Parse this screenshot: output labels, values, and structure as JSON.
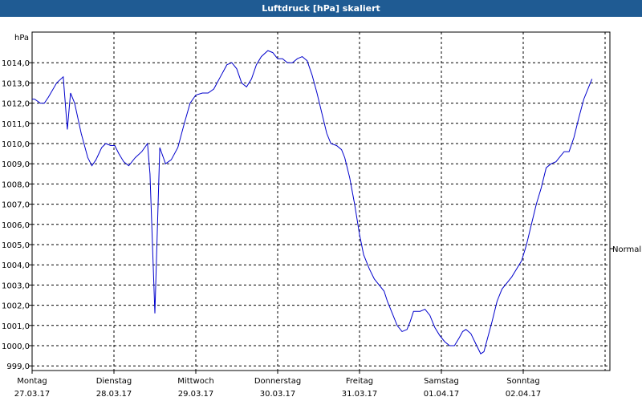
{
  "window": {
    "title": "Luftdruck [hPa] skaliert"
  },
  "chart_data": {
    "type": "line",
    "title": "Luftdruck [hPa] skaliert",
    "y_unit": "hPa",
    "ylim": [
      999.0,
      1014.5
    ],
    "y_ticks": [
      "999,0",
      "1000,0",
      "1001,0",
      "1002,0",
      "1003,0",
      "1004,0",
      "1005,0",
      "1006,0",
      "1007,0",
      "1008,0",
      "1009,0",
      "1010,0",
      "1011,0",
      "1012,0",
      "1013,0",
      "1014,0"
    ],
    "x_ticks": [
      {
        "day": "Montag",
        "date": "27.03.17"
      },
      {
        "day": "Dienstag",
        "date": "28.03.17"
      },
      {
        "day": "Mittwoch",
        "date": "29.03.17"
      },
      {
        "day": "Donnerstag",
        "date": "30.03.17"
      },
      {
        "day": "Freitag",
        "date": "31.03.17"
      },
      {
        "day": "Samstag",
        "date": "01.04.17"
      },
      {
        "day": "Sonntag",
        "date": "02.04.17"
      }
    ],
    "xlim_days": [
      0,
      7.18
    ],
    "reference_label": "Normal",
    "reference_value": 1004.8,
    "grid": true,
    "line_color": "#0000cc",
    "series": [
      {
        "points": [
          [
            0.0,
            1012.2
          ],
          [
            0.03,
            1012.2
          ],
          [
            0.1,
            1012.0
          ],
          [
            0.15,
            1012.0
          ],
          [
            0.2,
            1012.3
          ],
          [
            0.3,
            1013.0
          ],
          [
            0.38,
            1013.3
          ],
          [
            0.43,
            1010.7
          ],
          [
            0.47,
            1012.5
          ],
          [
            0.52,
            1012.0
          ],
          [
            0.6,
            1010.5
          ],
          [
            0.68,
            1009.3
          ],
          [
            0.73,
            1008.9
          ],
          [
            0.78,
            1009.2
          ],
          [
            0.85,
            1009.8
          ],
          [
            0.9,
            1010.0
          ],
          [
            0.96,
            1009.9
          ],
          [
            1.01,
            1009.9
          ],
          [
            1.06,
            1009.5
          ],
          [
            1.12,
            1009.1
          ],
          [
            1.18,
            1008.9
          ],
          [
            1.26,
            1009.3
          ],
          [
            1.34,
            1009.6
          ],
          [
            1.41,
            1010.0
          ],
          [
            1.44,
            1008.5
          ],
          [
            1.5,
            1001.6
          ],
          [
            1.56,
            1009.8
          ],
          [
            1.63,
            1009.0
          ],
          [
            1.7,
            1009.2
          ],
          [
            1.78,
            1009.8
          ],
          [
            1.86,
            1011.0
          ],
          [
            1.93,
            1012.0
          ],
          [
            2.0,
            1012.4
          ],
          [
            2.08,
            1012.5
          ],
          [
            2.15,
            1012.5
          ],
          [
            2.22,
            1012.7
          ],
          [
            2.3,
            1013.3
          ],
          [
            2.38,
            1013.9
          ],
          [
            2.44,
            1014.0
          ],
          [
            2.5,
            1013.7
          ],
          [
            2.56,
            1013.0
          ],
          [
            2.62,
            1012.8
          ],
          [
            2.68,
            1013.2
          ],
          [
            2.74,
            1013.9
          ],
          [
            2.8,
            1014.3
          ],
          [
            2.88,
            1014.6
          ],
          [
            2.94,
            1014.5
          ],
          [
            3.0,
            1014.2
          ],
          [
            3.06,
            1014.2
          ],
          [
            3.12,
            1014.0
          ],
          [
            3.18,
            1014.0
          ],
          [
            3.24,
            1014.2
          ],
          [
            3.3,
            1014.3
          ],
          [
            3.36,
            1014.1
          ],
          [
            3.42,
            1013.4
          ],
          [
            3.48,
            1012.5
          ],
          [
            3.54,
            1011.5
          ],
          [
            3.6,
            1010.5
          ],
          [
            3.65,
            1010.0
          ],
          [
            3.72,
            1009.9
          ],
          [
            3.78,
            1009.7
          ],
          [
            3.82,
            1009.3
          ],
          [
            3.88,
            1008.3
          ],
          [
            3.94,
            1007.0
          ],
          [
            4.0,
            1005.5
          ],
          [
            4.05,
            1004.5
          ],
          [
            4.12,
            1003.8
          ],
          [
            4.18,
            1003.3
          ],
          [
            4.24,
            1003.0
          ],
          [
            4.3,
            1002.7
          ],
          [
            4.34,
            1002.2
          ],
          [
            4.4,
            1001.6
          ],
          [
            4.46,
            1001.0
          ],
          [
            4.52,
            1000.7
          ],
          [
            4.58,
            1000.8
          ],
          [
            4.62,
            1001.2
          ],
          [
            4.66,
            1001.7
          ],
          [
            4.74,
            1001.7
          ],
          [
            4.8,
            1001.8
          ],
          [
            4.86,
            1001.5
          ],
          [
            4.92,
            1000.9
          ],
          [
            4.98,
            1000.5
          ],
          [
            5.04,
            1000.2
          ],
          [
            5.1,
            1000.0
          ],
          [
            5.16,
            1000.0
          ],
          [
            5.22,
            1000.4
          ],
          [
            5.26,
            1000.7
          ],
          [
            5.3,
            1000.8
          ],
          [
            5.36,
            1000.6
          ],
          [
            5.42,
            1000.1
          ],
          [
            5.48,
            999.6
          ],
          [
            5.52,
            999.7
          ],
          [
            5.56,
            1000.3
          ],
          [
            5.62,
            1001.2
          ],
          [
            5.68,
            1002.2
          ],
          [
            5.74,
            1002.8
          ],
          [
            5.8,
            1003.1
          ],
          [
            5.86,
            1003.4
          ],
          [
            5.92,
            1003.8
          ],
          [
            5.98,
            1004.2
          ],
          [
            6.04,
            1005.0
          ],
          [
            6.1,
            1006.0
          ],
          [
            6.16,
            1007.0
          ],
          [
            6.22,
            1007.8
          ],
          [
            6.28,
            1008.8
          ],
          [
            6.34,
            1009.0
          ],
          [
            6.4,
            1009.1
          ],
          [
            6.46,
            1009.4
          ],
          [
            6.5,
            1009.6
          ],
          [
            6.56,
            1009.6
          ],
          [
            6.62,
            1010.3
          ],
          [
            6.68,
            1011.3
          ],
          [
            6.74,
            1012.2
          ],
          [
            6.8,
            1012.8
          ],
          [
            6.84,
            1013.2
          ]
        ]
      }
    ]
  }
}
